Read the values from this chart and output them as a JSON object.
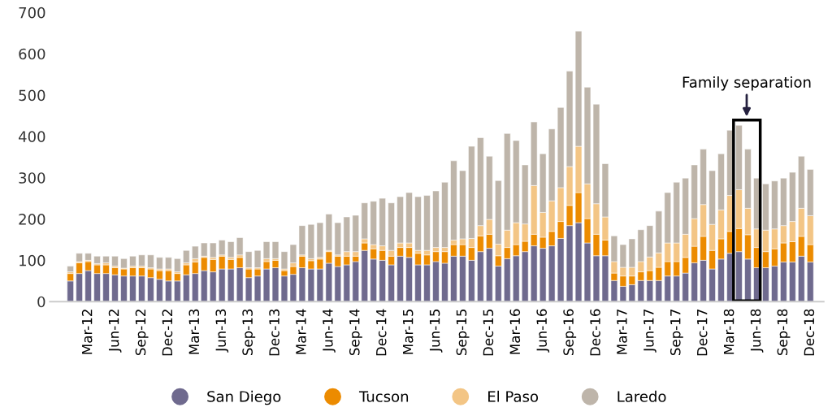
{
  "chart_data": {
    "type": "bar",
    "stacked": true,
    "categories": [
      null,
      null,
      "Mar-12",
      null,
      null,
      "Jun-12",
      null,
      null,
      "Sep-12",
      null,
      null,
      "Dec-12",
      null,
      null,
      "Mar-13",
      null,
      null,
      "Jun-13",
      null,
      null,
      "Sep-13",
      null,
      null,
      "Dec-13",
      null,
      null,
      "Mar-14",
      null,
      null,
      "Jun-14",
      null,
      null,
      "Sep-14",
      null,
      null,
      "Dec-14",
      null,
      null,
      "Mar-15",
      null,
      null,
      "Jun-15",
      null,
      null,
      "Sep-15",
      null,
      null,
      "Dec-15",
      null,
      null,
      "Mar-16",
      null,
      null,
      "Jun-16",
      null,
      null,
      "Sep-16",
      null,
      null,
      "Dec-16",
      null,
      null,
      "Mar-17",
      null,
      null,
      "Jun-17",
      null,
      null,
      "Sep-17",
      null,
      null,
      "Dec-17",
      null,
      null,
      "Mar-18",
      null,
      null,
      "Jun-18",
      null,
      null,
      "Sep-18",
      null,
      null,
      "Dec-18"
    ],
    "series": [
      {
        "name": "San Diego",
        "color": "#6f6a8e",
        "values": [
          50,
          68,
          75,
          68,
          68,
          65,
          62,
          62,
          62,
          58,
          54,
          50,
          50,
          65,
          68,
          75,
          72,
          79,
          79,
          82,
          58,
          62,
          79,
          82,
          62,
          66,
          82,
          79,
          79,
          93,
          85,
          89,
          97,
          124,
          103,
          100,
          89,
          110,
          107,
          89,
          89,
          97,
          93,
          110,
          110,
          100,
          121,
          129,
          86,
          104,
          111,
          121,
          135,
          129,
          135,
          153,
          184,
          191,
          142,
          111,
          111,
          51,
          37,
          41,
          51,
          51,
          51,
          62,
          62,
          69,
          94,
          100,
          79,
          103,
          117,
          121,
          103,
          82,
          82,
          86,
          96,
          96,
          110,
          96
        ]
      },
      {
        "name": "Tucson",
        "color": "#ec8b00",
        "values": [
          18,
          26,
          22,
          21,
          21,
          17,
          17,
          20,
          20,
          21,
          21,
          25,
          18,
          24,
          28,
          32,
          30,
          31,
          23,
          25,
          21,
          17,
          18,
          18,
          13,
          19,
          28,
          20,
          24,
          28,
          25,
          21,
          13,
          18,
          25,
          24,
          21,
          21,
          24,
          28,
          24,
          24,
          28,
          28,
          28,
          31,
          38,
          34,
          25,
          27,
          27,
          25,
          28,
          27,
          35,
          41,
          49,
          73,
          59,
          52,
          38,
          18,
          25,
          21,
          21,
          24,
          32,
          35,
          35,
          38,
          40,
          58,
          45,
          49,
          53,
          56,
          59,
          49,
          39,
          42,
          46,
          49,
          48,
          42
        ]
      },
      {
        "name": "El Paso",
        "color": "#f3c585",
        "values": [
          4,
          3,
          3,
          3,
          5,
          4,
          2,
          4,
          4,
          3,
          4,
          4,
          4,
          5,
          8,
          3,
          5,
          3,
          5,
          6,
          3,
          3,
          7,
          4,
          4,
          9,
          3,
          5,
          4,
          3,
          3,
          11,
          11,
          10,
          10,
          11,
          14,
          11,
          11,
          7,
          11,
          10,
          10,
          11,
          14,
          22,
          25,
          36,
          28,
          42,
          53,
          42,
          118,
          60,
          74,
          82,
          94,
          112,
          84,
          74,
          56,
          28,
          21,
          21,
          25,
          33,
          35,
          45,
          45,
          56,
          67,
          77,
          63,
          70,
          87,
          94,
          64,
          45,
          52,
          48,
          42,
          49,
          68,
          70
        ]
      },
      {
        "name": "Laredo",
        "color": "#beb5aa",
        "values": [
          14,
          20,
          17,
          18,
          16,
          24,
          23,
          24,
          27,
          31,
          28,
          28,
          32,
          30,
          30,
          32,
          35,
          36,
          38,
          42,
          39,
          42,
          41,
          41,
          42,
          44,
          71,
          83,
          84,
          88,
          78,
          84,
          88,
          87,
          105,
          115,
          115,
          112,
          122,
          130,
          133,
          137,
          158,
          192,
          165,
          223,
          213,
          153,
          154,
          234,
          199,
          143,
          154,
          142,
          174,
          194,
          231,
          279,
          234,
          241,
          129,
          62,
          55,
          69,
          77,
          76,
          101,
          122,
          147,
          136,
          130,
          134,
          130,
          136,
          158,
          156,
          143,
          123,
          112,
          116,
          115,
          119,
          126,
          112
        ]
      }
    ],
    "ylim": [
      0,
      700
    ],
    "yticks": [
      0,
      100,
      200,
      300,
      400,
      500,
      600,
      700
    ],
    "annotations": [
      "Family separation"
    ],
    "legend": "bottom"
  }
}
